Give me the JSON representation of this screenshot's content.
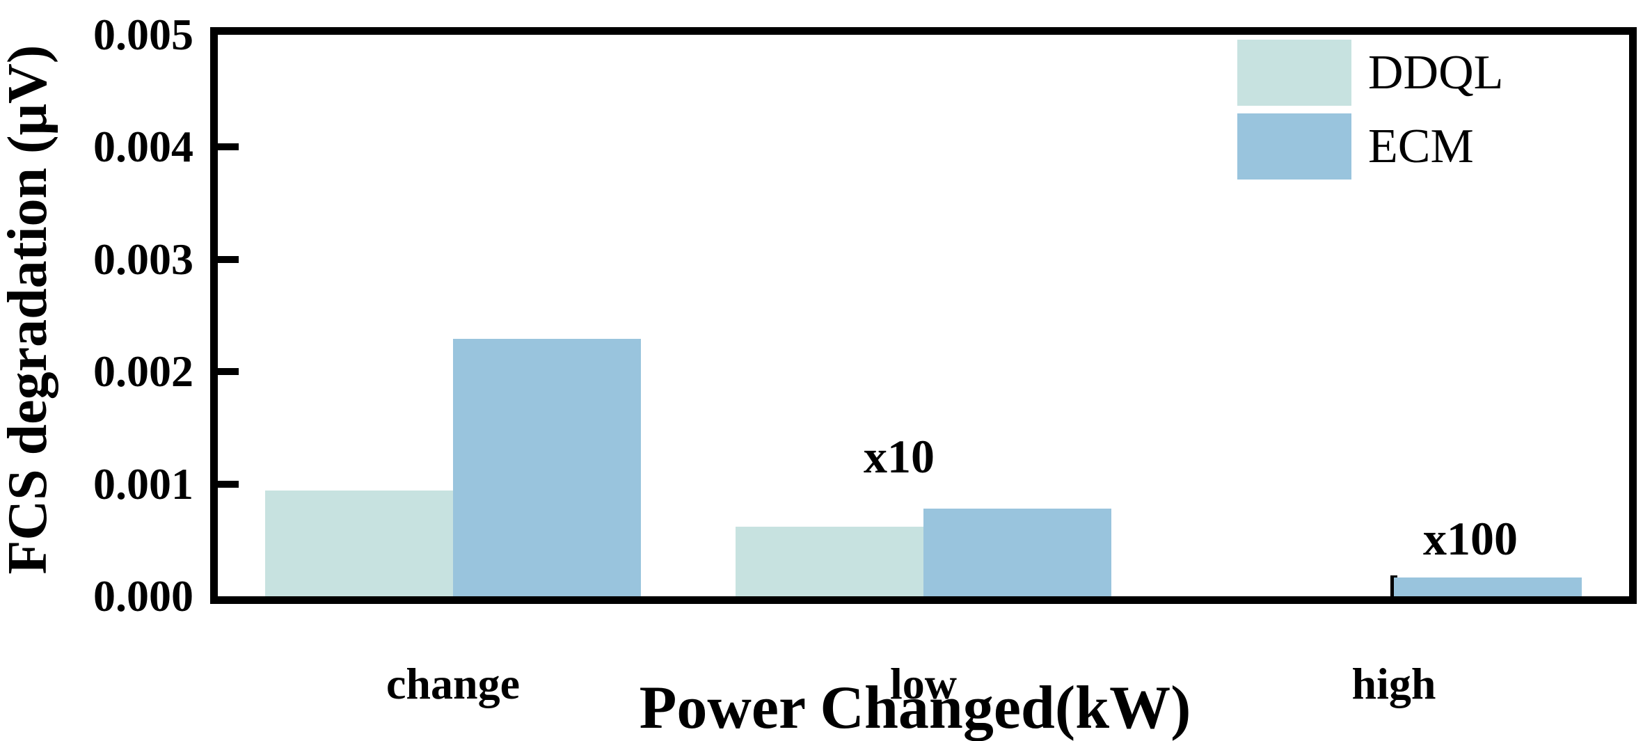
{
  "figure": {
    "x_axis_title": "Power Changed(kW)",
    "y_axis_title": "FCS degradation (μV)"
  },
  "legend": {
    "position": "upper right",
    "items": [
      {
        "label": "DDQL",
        "color": "#c7e2e0"
      },
      {
        "label": "ECM",
        "color": "#99c4dd"
      }
    ]
  },
  "chart_data": {
    "type": "bar",
    "title": "",
    "xlabel": "Power Changed(kW)",
    "ylabel": "FCS degradation (μV)",
    "categories": [
      "change",
      "low",
      "high"
    ],
    "series": [
      {
        "name": "DDQL",
        "color": "#c7e2e0",
        "values": [
          0.00094,
          0.00062,
          0.0
        ]
      },
      {
        "name": "ECM",
        "color": "#99c4dd",
        "values": [
          0.00229,
          0.00078,
          0.00017
        ]
      }
    ],
    "annotations": [
      {
        "text": "x10",
        "category": "low"
      },
      {
        "text": "x100",
        "category": "high"
      }
    ],
    "ylim": [
      0,
      0.005
    ],
    "yticks": [
      "0.000",
      "0.001",
      "0.002",
      "0.003",
      "0.004",
      "0.005"
    ],
    "grid": false,
    "legend_position": "upper right",
    "tick_direction": "in"
  }
}
